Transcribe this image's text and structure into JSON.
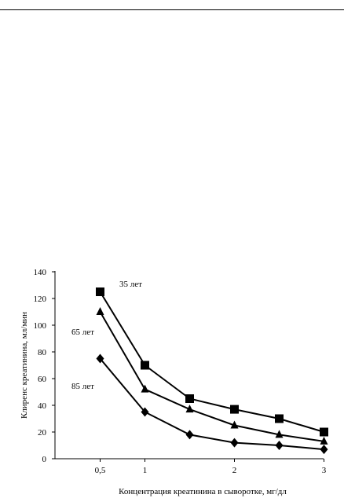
{
  "chart_data": {
    "type": "line",
    "xlabel": "Концентрация креатинина в сыворотке, мг/дл",
    "ylabel": "Клиренс креатинина, мл/мин",
    "xlim": [
      0,
      3
    ],
    "ylim": [
      0,
      140
    ],
    "xticks": [
      {
        "value": 0.5,
        "label": "0,5"
      },
      {
        "value": 1,
        "label": "1"
      },
      {
        "value": 2,
        "label": "2"
      },
      {
        "value": 3,
        "label": "3"
      }
    ],
    "yticks": [
      0,
      20,
      40,
      60,
      80,
      100,
      120,
      140
    ],
    "grid": false,
    "series": [
      {
        "name": "35 лет",
        "marker": "square",
        "points": [
          [
            0.5,
            125
          ],
          [
            1,
            70
          ],
          [
            1.5,
            45
          ],
          [
            2,
            37
          ],
          [
            2.5,
            30
          ],
          [
            3,
            20
          ]
        ]
      },
      {
        "name": "65 лет",
        "marker": "triangle",
        "points": [
          [
            0.5,
            110
          ],
          [
            1,
            52
          ],
          [
            1.5,
            37
          ],
          [
            2,
            25
          ],
          [
            2.5,
            18
          ],
          [
            3,
            13
          ]
        ]
      },
      {
        "name": "85 лет",
        "marker": "diamond",
        "points": [
          [
            0.5,
            75
          ],
          [
            1,
            35
          ],
          [
            1.5,
            18
          ],
          [
            2,
            12
          ],
          [
            2.5,
            10
          ],
          [
            3,
            7
          ]
        ]
      }
    ]
  }
}
